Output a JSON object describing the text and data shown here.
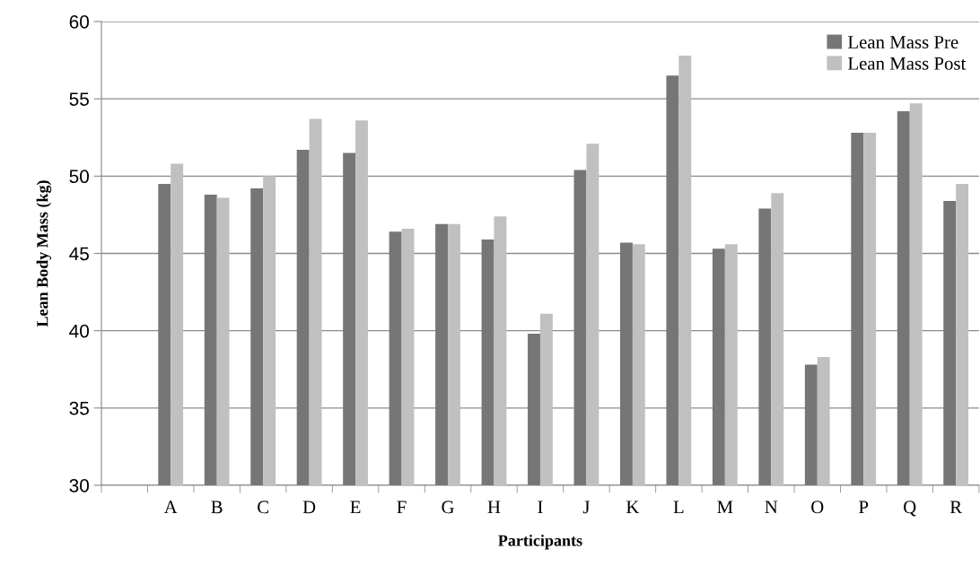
{
  "chart_data": {
    "type": "bar",
    "xlabel": "Participants",
    "ylabel": "Lean Body Mass (kg)",
    "categories": [
      null,
      "A",
      "B",
      "C",
      "D",
      "E",
      "F",
      "G",
      "H",
      "I",
      "J",
      "K",
      "L",
      "M",
      "N",
      "O",
      "P",
      "Q",
      "R"
    ],
    "series": [
      {
        "name": "Lean Mass Pre",
        "color": "#767676",
        "values": [
          null,
          49.5,
          48.8,
          49.2,
          51.7,
          51.5,
          46.4,
          46.9,
          45.9,
          39.8,
          50.4,
          45.7,
          56.5,
          45.3,
          47.9,
          37.8,
          52.8,
          54.2,
          48.4
        ]
      },
      {
        "name": "Lean Mass Post",
        "color": "#c0c0c0",
        "values": [
          null,
          50.8,
          48.6,
          50.0,
          53.7,
          53.6,
          46.6,
          46.9,
          47.4,
          41.1,
          52.1,
          45.6,
          57.8,
          45.6,
          48.9,
          38.3,
          52.8,
          54.7,
          49.5
        ]
      }
    ],
    "ylim": [
      30,
      60
    ],
    "yticks": [
      30,
      35,
      40,
      45,
      50,
      55,
      60
    ],
    "grid": "y",
    "legend": "top right"
  }
}
